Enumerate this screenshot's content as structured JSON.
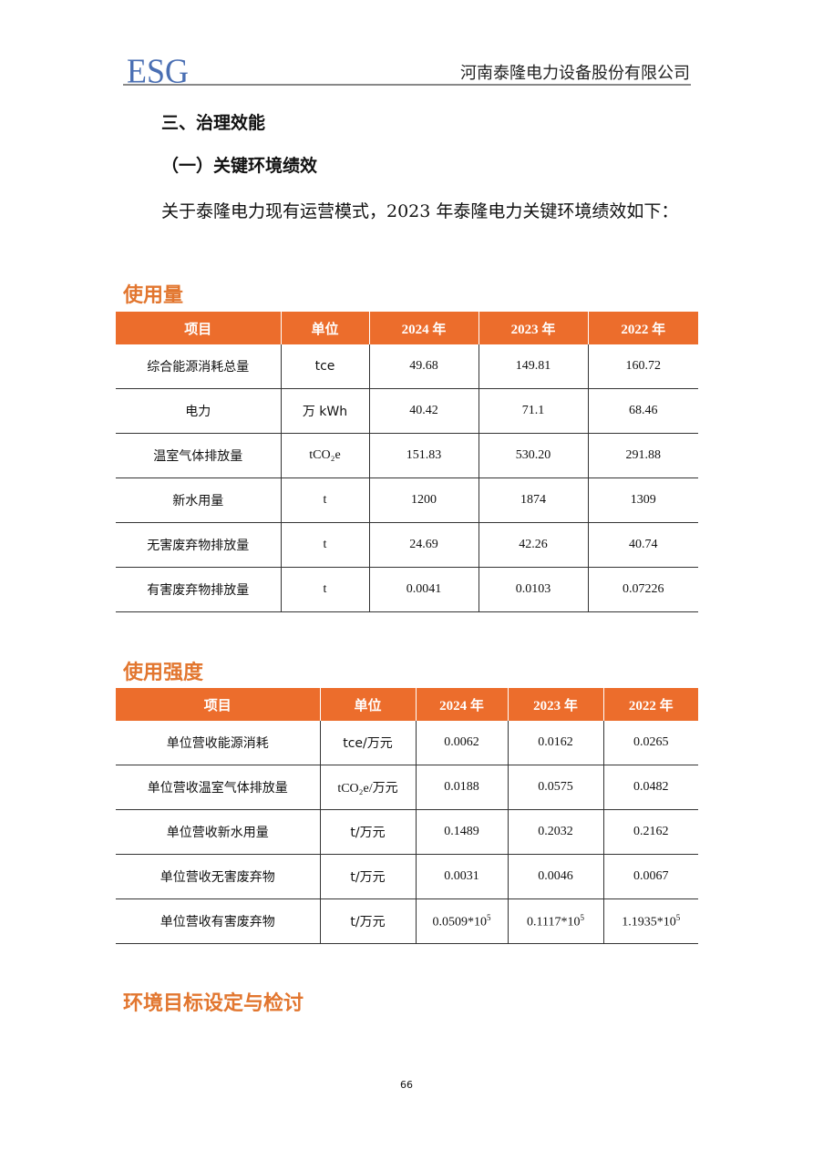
{
  "header": {
    "logo": "ESG",
    "company": "河南泰隆电力设备股份有限公司"
  },
  "heading1": "三、治理效能",
  "heading2": "（一）关键环境绩效",
  "paragraph": "关于泰隆电力现有运营模式，2023 年泰隆电力关键环境绩效如下：",
  "colors": {
    "table_header": "#ec6d2c",
    "section_title": "#e2762f",
    "logo": "#4a6fb3"
  },
  "usage": {
    "title": "使用量",
    "headers": [
      "项目",
      "单位",
      "2024 年",
      "2023 年",
      "2022 年"
    ],
    "rows": [
      {
        "item": "综合能源消耗总量",
        "unit": "tce",
        "v2024": "49.68",
        "v2023": "149.81",
        "v2022": "160.72"
      },
      {
        "item": "电力",
        "unit": "万 kWh",
        "v2024": "40.42",
        "v2023": "71.1",
        "v2022": "68.46"
      },
      {
        "item": "温室气体排放量",
        "unit": "tCO₂e",
        "v2024": "151.83",
        "v2023": "530.20",
        "v2022": "291.88"
      },
      {
        "item": "新水用量",
        "unit": "t",
        "v2024": "1200",
        "v2023": "1874",
        "v2022": "1309"
      },
      {
        "item": "无害废弃物排放量",
        "unit": "t",
        "v2024": "24.69",
        "v2023": "42.26",
        "v2022": "40.74"
      },
      {
        "item": "有害废弃物排放量",
        "unit": "t",
        "v2024": "0.0041",
        "v2023": "0.0103",
        "v2022": "0.07226"
      }
    ]
  },
  "intensity": {
    "title": "使用强度",
    "headers": [
      "项目",
      "单位",
      "2024 年",
      "2023 年",
      "2022 年"
    ],
    "rows": [
      {
        "item": "单位营收能源消耗",
        "unit": "tce/万元",
        "v2024": "0.0062",
        "v2023": "0.0162",
        "v2022": "0.0265"
      },
      {
        "item": "单位营收温室气体排放量",
        "unit": "tCO₂e/万元",
        "v2024": "0.0188",
        "v2023": "0.0575",
        "v2022": "0.0482"
      },
      {
        "item": "单位营收新水用量",
        "unit": "t/万元",
        "v2024": "0.1489",
        "v2023": "0.2032",
        "v2022": "0.2162"
      },
      {
        "item": "单位营收无害废弃物",
        "unit": "t/万元",
        "v2024": "0.0031",
        "v2023": "0.0046",
        "v2022": "0.0067"
      },
      {
        "item": "单位营收有害废弃物",
        "unit": "t/万元",
        "v2024": "0.0509*10",
        "v2023": "0.1117*10",
        "v2022": "1.1935*10",
        "exp": "5"
      }
    ]
  },
  "section3_title": "环境目标设定与检讨",
  "page_number": "66"
}
